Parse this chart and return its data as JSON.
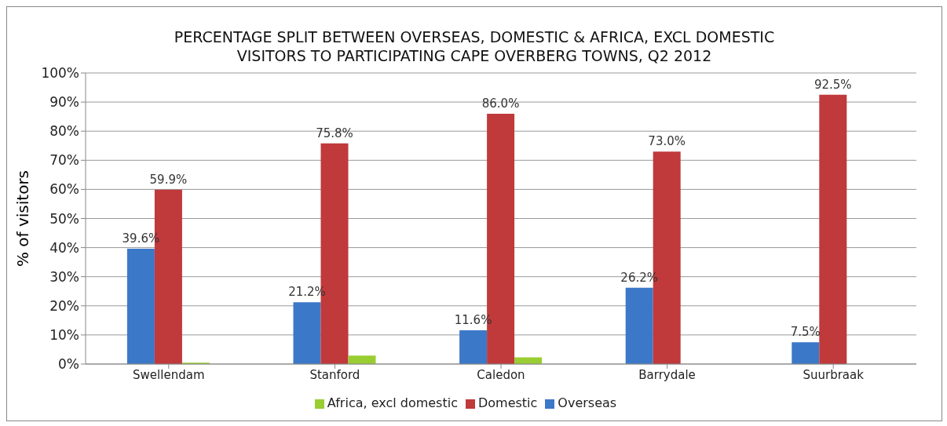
{
  "chart_data": {
    "type": "bar",
    "title": "PERCENTAGE SPLIT BETWEEN OVERSEAS, DOMESTIC & AFRICA, EXCL DOMESTIC VISITORS TO PARTICIPATING CAPE OVERBERG TOWNS, Q2 2012",
    "ylabel": "% of visitors",
    "categories": [
      "Swellendam",
      "Stanford",
      "Caledon",
      "Barrydale",
      "Suurbraak"
    ],
    "series": [
      {
        "name": "Overseas",
        "color": "#3c78c8",
        "values": [
          39.6,
          21.2,
          11.6,
          26.2,
          7.5
        ],
        "value_labels": [
          "39.6%",
          "21.2%",
          "11.6%",
          "26.2%",
          "7.5%"
        ]
      },
      {
        "name": "Domestic",
        "color": "#c0393b",
        "values": [
          59.9,
          75.8,
          86.0,
          73.0,
          92.5
        ],
        "value_labels": [
          "59.9%",
          "75.8%",
          "86.0%",
          "73.0%",
          "92.5%"
        ]
      },
      {
        "name": "Africa, excl domestic",
        "color": "#9acd32",
        "values": [
          0.5,
          2.9,
          2.3,
          0,
          0
        ]
      }
    ],
    "ylim": [
      0,
      100
    ],
    "yticks": [
      {
        "value": 0,
        "label": "0%"
      },
      {
        "value": 10,
        "label": "10%"
      },
      {
        "value": 20,
        "label": "20%"
      },
      {
        "value": 30,
        "label": "30%"
      },
      {
        "value": 40,
        "label": "40%"
      },
      {
        "value": 50,
        "label": "50%"
      },
      {
        "value": 60,
        "label": "60%"
      },
      {
        "value": 70,
        "label": "70%"
      },
      {
        "value": 80,
        "label": "80%"
      },
      {
        "value": 90,
        "label": "90%"
      },
      {
        "value": 100,
        "label": "100%"
      }
    ],
    "grid": "y",
    "legend": "bottom"
  }
}
